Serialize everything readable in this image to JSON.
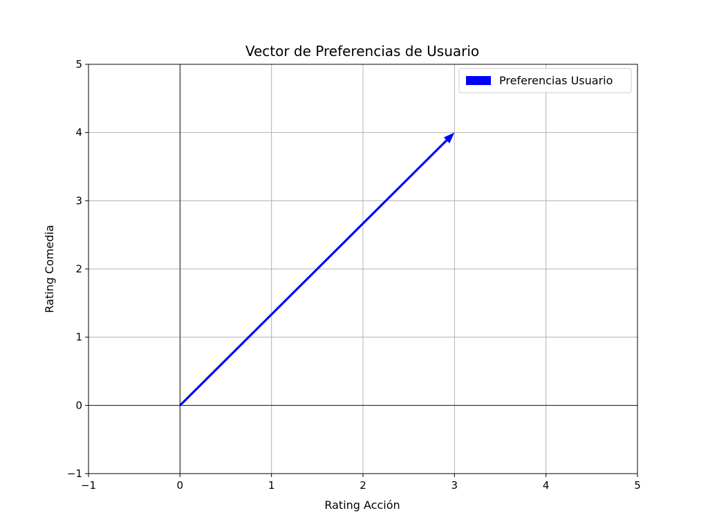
{
  "chart_data": {
    "type": "vector",
    "title": "Vector de Preferencias de Usuario",
    "xlabel": "Rating Acción",
    "ylabel": "Rating Comedia",
    "xlim": [
      -1,
      5
    ],
    "ylim": [
      -1,
      5
    ],
    "xticks": [
      -1,
      0,
      1,
      2,
      3,
      4,
      5
    ],
    "yticks": [
      -1,
      0,
      1,
      2,
      3,
      4,
      5
    ],
    "tick_labels_x": [
      "−1",
      "0",
      "1",
      "2",
      "3",
      "4",
      "5"
    ],
    "tick_labels_y": [
      "−1",
      "0",
      "1",
      "2",
      "3",
      "4",
      "5"
    ],
    "grid": true,
    "axis_lines_at_zero": true,
    "legend_position": "top-right",
    "series": [
      {
        "name": "Preferencias Usuario",
        "origin": [
          0,
          0
        ],
        "vector": [
          3,
          4
        ],
        "color": "#0000ff"
      }
    ]
  }
}
